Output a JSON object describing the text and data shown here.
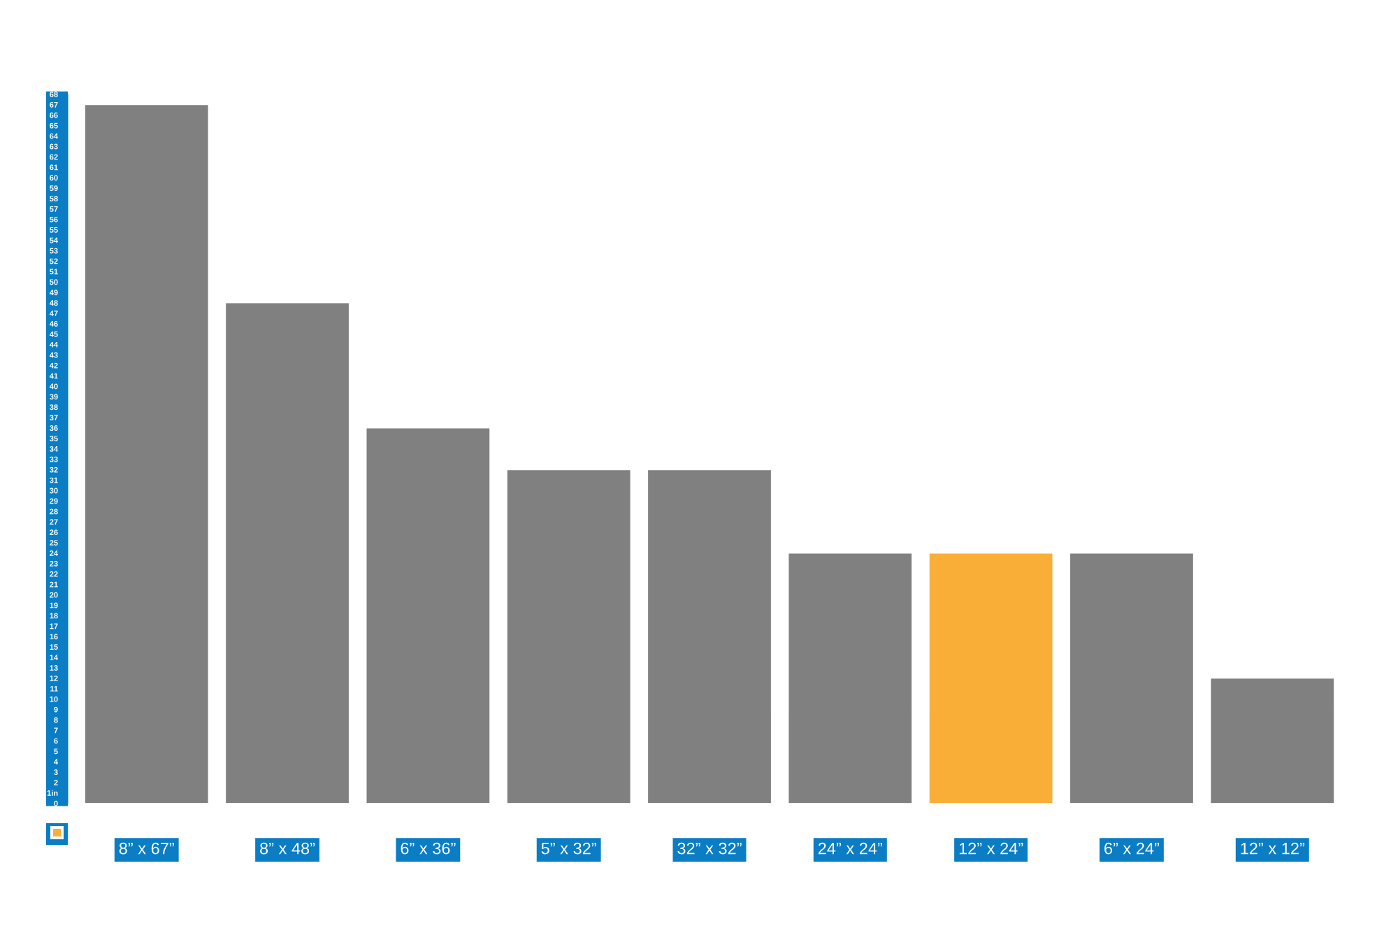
{
  "chart_data": {
    "type": "bar",
    "categories": [
      "8” x 67”",
      "8” x 48”",
      "6” x 36”",
      "5” x 32”",
      "32” x 32”",
      "24” x 24”",
      "12” x 24”",
      "6” x 24”",
      "12” x 12”"
    ],
    "values": [
      67,
      48,
      36,
      32,
      32,
      24,
      24,
      24,
      12
    ],
    "colors": [
      "#808080",
      "#808080",
      "#808080",
      "#808080",
      "#808080",
      "#808080",
      "#f9ae37",
      "#808080",
      "#808080"
    ],
    "ylim": [
      0,
      68
    ],
    "yticks": [
      {
        "value": 0,
        "label": "0"
      },
      {
        "value": 1,
        "label": "1in"
      },
      2,
      3,
      4,
      5,
      6,
      7,
      8,
      9,
      10,
      11,
      12,
      13,
      14,
      15,
      16,
      17,
      18,
      19,
      20,
      21,
      22,
      23,
      24,
      25,
      26,
      27,
      28,
      29,
      30,
      31,
      32,
      33,
      34,
      35,
      36,
      37,
      38,
      39,
      40,
      41,
      42,
      43,
      44,
      45,
      46,
      47,
      48,
      49,
      50,
      51,
      52,
      53,
      54,
      55,
      56,
      57,
      58,
      59,
      60,
      61,
      62,
      63,
      64,
      65,
      66,
      67,
      68
    ]
  }
}
